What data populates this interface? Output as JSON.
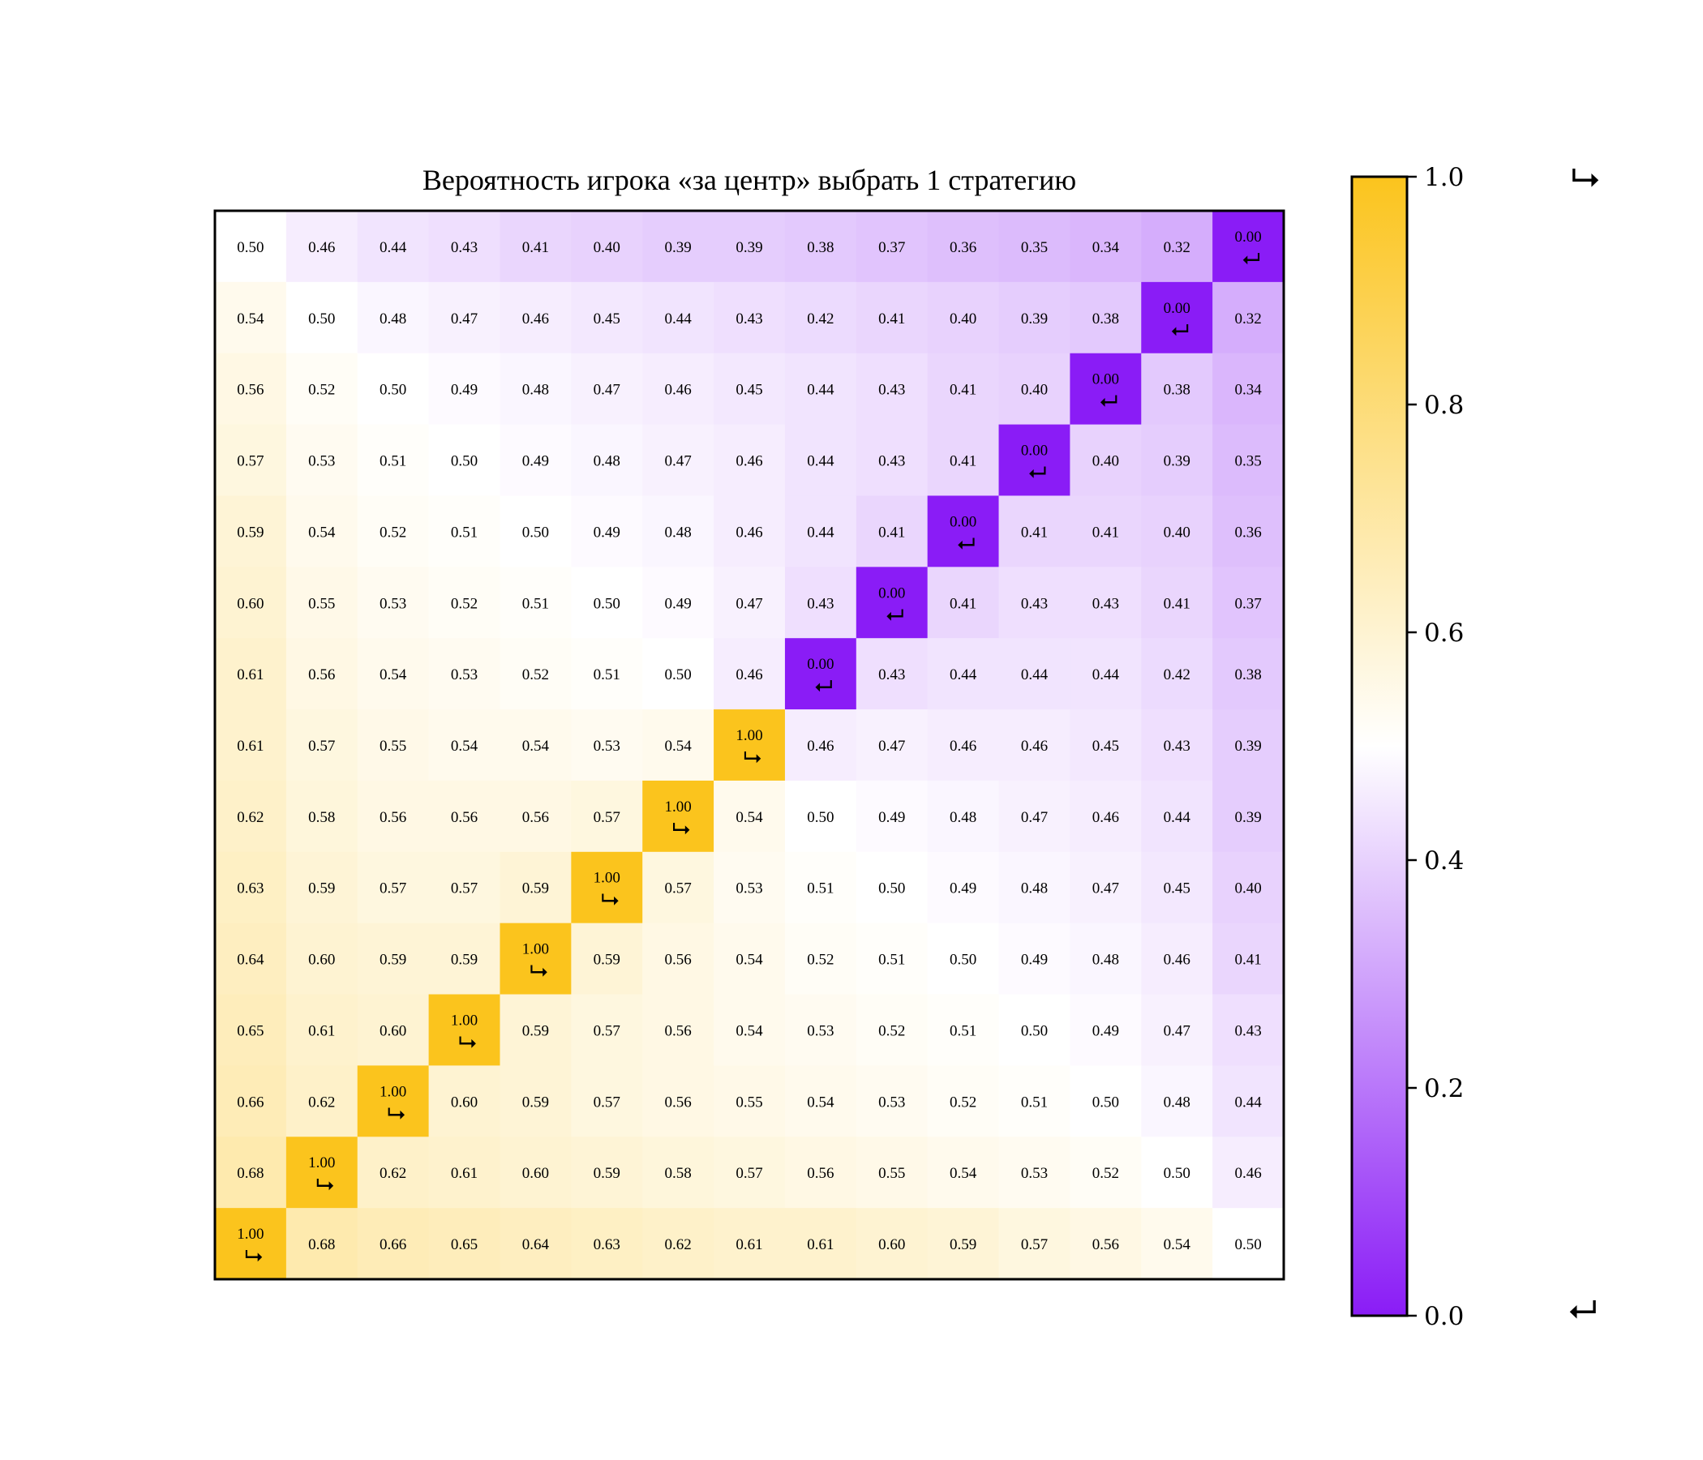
{
  "chart_data": {
    "type": "heatmap",
    "title": "Вероятность игрока «за центр» выбрать 1 стратегию",
    "xlabel": "",
    "ylabel": "",
    "colormap": {
      "low": "#8a1cf6",
      "mid": "#ffffff",
      "high": "#fbc41d"
    },
    "colorbar": {
      "range": [
        0.0,
        1.0
      ],
      "ticks": [
        "0.0",
        "0.2",
        "0.4",
        "0.6",
        "0.8",
        "1.0"
      ]
    },
    "cell_marker_high": "⮡",
    "cell_marker_low": "⮠",
    "legend_marker_high": "⮡",
    "legend_marker_low": "⮠",
    "values": [
      [
        0.5,
        0.46,
        0.44,
        0.43,
        0.41,
        0.4,
        0.39,
        0.39,
        0.38,
        0.37,
        0.36,
        0.35,
        0.34,
        0.32,
        0.0
      ],
      [
        0.54,
        0.5,
        0.48,
        0.47,
        0.46,
        0.45,
        0.44,
        0.43,
        0.42,
        0.41,
        0.4,
        0.39,
        0.38,
        0.0,
        0.32
      ],
      [
        0.56,
        0.52,
        0.5,
        0.49,
        0.48,
        0.47,
        0.46,
        0.45,
        0.44,
        0.43,
        0.41,
        0.4,
        0.0,
        0.38,
        0.34
      ],
      [
        0.57,
        0.53,
        0.51,
        0.5,
        0.49,
        0.48,
        0.47,
        0.46,
        0.44,
        0.43,
        0.41,
        0.0,
        0.4,
        0.39,
        0.35
      ],
      [
        0.59,
        0.54,
        0.52,
        0.51,
        0.5,
        0.49,
        0.48,
        0.46,
        0.44,
        0.41,
        0.0,
        0.41,
        0.41,
        0.4,
        0.36
      ],
      [
        0.6,
        0.55,
        0.53,
        0.52,
        0.51,
        0.5,
        0.49,
        0.47,
        0.43,
        0.0,
        0.41,
        0.43,
        0.43,
        0.41,
        0.37
      ],
      [
        0.61,
        0.56,
        0.54,
        0.53,
        0.52,
        0.51,
        0.5,
        0.46,
        0.0,
        0.43,
        0.44,
        0.44,
        0.44,
        0.42,
        0.38
      ],
      [
        0.61,
        0.57,
        0.55,
        0.54,
        0.54,
        0.53,
        0.54,
        1.0,
        0.46,
        0.47,
        0.46,
        0.46,
        0.45,
        0.43,
        0.39
      ],
      [
        0.62,
        0.58,
        0.56,
        0.56,
        0.56,
        0.57,
        1.0,
        0.54,
        0.5,
        0.49,
        0.48,
        0.47,
        0.46,
        0.44,
        0.39
      ],
      [
        0.63,
        0.59,
        0.57,
        0.57,
        0.59,
        1.0,
        0.57,
        0.53,
        0.51,
        0.5,
        0.49,
        0.48,
        0.47,
        0.45,
        0.4
      ],
      [
        0.64,
        0.6,
        0.59,
        0.59,
        1.0,
        0.59,
        0.56,
        0.54,
        0.52,
        0.51,
        0.5,
        0.49,
        0.48,
        0.46,
        0.41
      ],
      [
        0.65,
        0.61,
        0.6,
        1.0,
        0.59,
        0.57,
        0.56,
        0.54,
        0.53,
        0.52,
        0.51,
        0.5,
        0.49,
        0.47,
        0.43
      ],
      [
        0.66,
        0.62,
        1.0,
        0.6,
        0.59,
        0.57,
        0.56,
        0.55,
        0.54,
        0.53,
        0.52,
        0.51,
        0.5,
        0.48,
        0.44
      ],
      [
        0.68,
        1.0,
        0.62,
        0.61,
        0.6,
        0.59,
        0.58,
        0.57,
        0.56,
        0.55,
        0.54,
        0.53,
        0.52,
        0.5,
        0.46
      ],
      [
        1.0,
        0.68,
        0.66,
        0.65,
        0.64,
        0.63,
        0.62,
        0.61,
        0.61,
        0.6,
        0.59,
        0.57,
        0.56,
        0.54,
        0.5
      ]
    ]
  }
}
